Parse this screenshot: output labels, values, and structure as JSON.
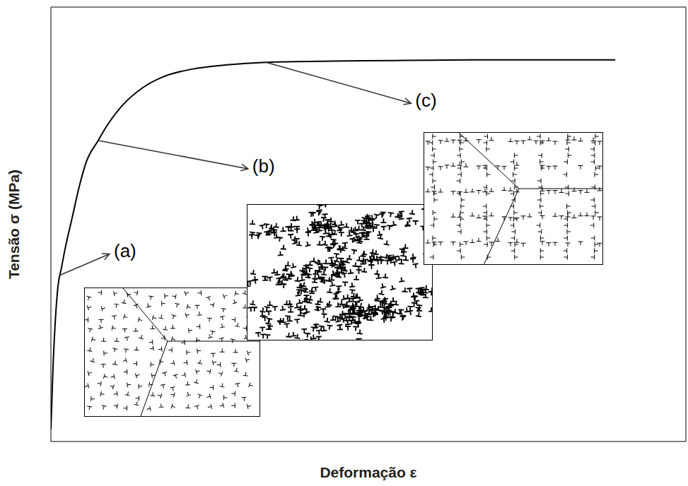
{
  "chart_data": {
    "type": "line",
    "xlabel": "Deformação ε",
    "ylabel": "Tensão σ (MPa)",
    "x": [
      0,
      0.03,
      0.06,
      0.1,
      0.15,
      0.2,
      0.3,
      0.4,
      0.5,
      0.67,
      0.8,
      1.0,
      1.3,
      1.6,
      2.0,
      2.5,
      3.05,
      4,
      5,
      6,
      7,
      8
    ],
    "values": [
      0.2,
      1.2,
      1.9,
      2.5,
      2.8,
      3.1,
      3.6,
      4.1,
      4.5,
      4.85,
      5.1,
      5.4,
      5.7,
      5.88,
      6.0,
      6.07,
      6.11,
      6.13,
      6.14,
      6.15,
      6.15,
      6.15
    ],
    "color": "#000000",
    "xlim": [
      0,
      9
    ],
    "xticks": [
      0,
      1,
      2,
      3,
      4,
      5,
      6,
      7,
      8
    ],
    "ylim": [
      0,
      7
    ],
    "yticks": [
      0,
      1,
      2,
      3,
      4,
      5,
      6
    ],
    "tick_labels": false,
    "grid": false,
    "annotations": [
      {
        "text": "(a)",
        "x": 0.13,
        "y": 2.68
      },
      {
        "text": "(b)",
        "x": 0.67,
        "y": 4.85
      },
      {
        "text": "(c)",
        "x": 3.05,
        "y": 6.11
      }
    ]
  }
}
